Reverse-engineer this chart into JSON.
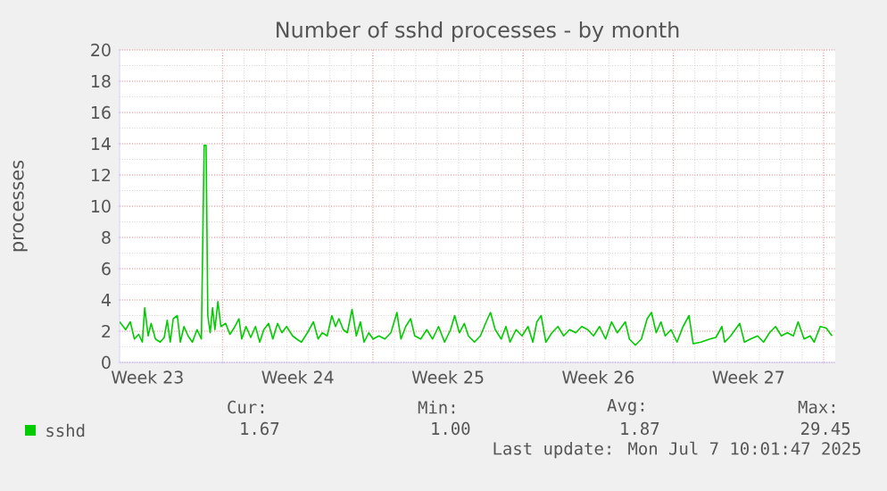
{
  "chart_data": {
    "type": "line",
    "title": "Number of sshd processes - by month",
    "ylabel": "processes",
    "x": [
      "2025-06-04T04:48",
      "2025-06-04T11:31",
      "2025-06-04T16:48",
      "2025-06-04T21:22",
      "2025-06-05T02:10",
      "2025-06-05T06:14",
      "2025-06-05T08:53",
      "2025-06-05T12:43",
      "2025-06-05T16:05",
      "2025-06-05T20:53",
      "2025-06-06T02:10",
      "2025-06-06T06:43",
      "2025-06-06T10:05",
      "2025-06-06T13:26",
      "2025-06-06T16:48",
      "2025-06-06T21:22",
      "2025-06-07T00:43",
      "2025-06-07T04:48",
      "2025-06-07T09:22",
      "2025-06-07T14:10",
      "2025-06-07T19:26",
      "2025-06-08T00:14",
      "2025-06-08T03:22",
      "2025-06-08T05:31",
      "2025-06-08T07:26",
      "2025-06-08T10:05",
      "2025-06-08T12:43",
      "2025-06-08T15:22",
      "2025-06-08T18:43",
      "2025-06-08T22:05",
      "2025-06-09T03:22",
      "2025-06-09T08:10",
      "2025-06-09T12:43",
      "2025-06-09T18:14",
      "2025-06-09T21:22",
      "2025-06-10T02:10",
      "2025-06-10T07:26",
      "2025-06-10T12:43",
      "2025-06-10T17:31",
      "2025-06-10T22:05",
      "2025-06-11T03:22",
      "2025-06-11T08:10",
      "2025-06-11T13:26",
      "2025-06-11T18:14",
      "2025-06-11T23:31",
      "2025-06-12T06:14",
      "2025-06-12T10:48",
      "2025-06-12T16:05",
      "2025-06-12T22:48",
      "2025-06-13T05:31",
      "2025-06-13T10:48",
      "2025-06-13T15:22",
      "2025-06-13T20:53",
      "2025-06-14T02:10",
      "2025-06-14T06:14",
      "2025-06-14T10:05",
      "2025-06-14T14:53",
      "2025-06-14T19:26",
      "2025-06-15T00:43",
      "2025-06-15T05:31",
      "2025-06-15T10:05",
      "2025-06-15T14:10",
      "2025-06-15T19:26",
      "2025-06-16T00:14",
      "2025-06-16T06:43",
      "2025-06-16T13:26",
      "2025-06-16T20:10",
      "2025-06-17T02:53",
      "2025-06-17T07:26",
      "2025-06-17T12:43",
      "2025-06-17T18:14",
      "2025-06-17T22:48",
      "2025-06-18T05:31",
      "2025-06-18T12:14",
      "2025-06-18T18:43",
      "2025-06-19T01:26",
      "2025-06-19T08:10",
      "2025-06-19T14:53",
      "2025-06-19T19:26",
      "2025-06-20T00:43",
      "2025-06-20T06:14",
      "2025-06-20T10:48",
      "2025-06-20T17:31",
      "2025-06-21T00:14",
      "2025-06-21T06:43",
      "2025-06-21T11:31",
      "2025-06-21T16:48",
      "2025-06-21T23:31",
      "2025-06-22T04:48",
      "2025-06-22T09:22",
      "2025-06-22T16:05",
      "2025-06-22T22:48",
      "2025-06-23T05:31",
      "2025-06-23T10:48",
      "2025-06-23T15:22",
      "2025-06-23T20:10",
      "2025-06-24T01:26",
      "2025-06-24T08:10",
      "2025-06-24T14:53",
      "2025-06-24T21:22",
      "2025-06-25T04:05",
      "2025-06-25T10:48",
      "2025-06-25T17:31",
      "2025-06-26T00:14",
      "2025-06-26T06:43",
      "2025-06-26T13:26",
      "2025-06-26T20:10",
      "2025-06-27T02:53",
      "2025-06-27T09:22",
      "2025-06-27T18:14",
      "2025-06-27T22:48",
      "2025-06-28T05:31",
      "2025-06-28T12:14",
      "2025-06-28T18:43",
      "2025-06-28T23:31",
      "2025-06-29T04:48",
      "2025-06-29T10:05",
      "2025-06-29T14:53",
      "2025-06-29T21:22",
      "2025-06-30T04:05",
      "2025-06-30T10:48",
      "2025-06-30T17:31",
      "2025-06-30T22:05",
      "2025-07-01T06:43",
      "2025-07-01T16:48",
      "2025-07-01T23:31",
      "2025-07-02T06:14",
      "2025-07-02T09:22",
      "2025-07-02T16:05",
      "2025-07-03T02:10",
      "2025-07-03T07:26",
      "2025-07-03T14:10",
      "2025-07-03T22:05",
      "2025-07-04T04:48",
      "2025-07-04T11:31",
      "2025-07-04T18:14",
      "2025-07-05T00:43",
      "2025-07-05T07:26",
      "2025-07-05T14:10",
      "2025-07-05T19:26",
      "2025-07-06T02:10",
      "2025-07-06T08:53",
      "2025-07-06T13:26",
      "2025-07-06T20:10",
      "2025-07-07T02:53",
      "2025-07-07T09:22"
    ],
    "series": [
      {
        "name": "sshd",
        "color": "#00cc00",
        "values": [
          2.6,
          2.1,
          2.6,
          1.5,
          1.8,
          1.3,
          3.5,
          1.7,
          2.5,
          1.5,
          1.3,
          1.6,
          2.7,
          1.3,
          2.8,
          3.0,
          1.3,
          2.3,
          1.7,
          1.3,
          2.1,
          1.5,
          13.9,
          13.9,
          3.0,
          1.9,
          3.5,
          2.1,
          3.9,
          2.3,
          2.5,
          1.8,
          2.2,
          2.8,
          1.5,
          2.3,
          1.6,
          2.3,
          1.3,
          2.1,
          2.5,
          1.5,
          2.5,
          1.9,
          2.3,
          1.7,
          1.5,
          1.3,
          1.9,
          2.6,
          1.5,
          1.9,
          1.7,
          3.0,
          2.3,
          2.8,
          2.1,
          1.9,
          3.4,
          1.7,
          2.6,
          1.3,
          1.9,
          1.5,
          1.7,
          1.5,
          1.9,
          3.2,
          1.5,
          2.3,
          2.8,
          1.7,
          1.5,
          2.1,
          1.5,
          2.3,
          1.3,
          2.1,
          3.0,
          1.9,
          2.5,
          1.7,
          1.3,
          1.7,
          2.6,
          3.2,
          2.1,
          1.5,
          2.3,
          1.3,
          2.1,
          1.7,
          2.3,
          1.3,
          2.6,
          3.0,
          1.3,
          1.9,
          2.3,
          1.7,
          2.1,
          1.9,
          2.3,
          2.1,
          1.7,
          2.3,
          1.5,
          2.6,
          1.9,
          2.6,
          1.5,
          1.1,
          1.5,
          2.8,
          3.2,
          1.9,
          2.6,
          1.7,
          2.1,
          1.3,
          2.3,
          3.0,
          1.2,
          1.3,
          1.5,
          1.6,
          2.3,
          1.3,
          1.7,
          2.5,
          1.3,
          1.5,
          1.7,
          1.3,
          1.9,
          2.3,
          1.7,
          1.9,
          1.7,
          2.6,
          1.5,
          1.7,
          1.3,
          2.3,
          2.2,
          1.7
        ]
      }
    ],
    "xlim": [
      "2025-06-04T04:48",
      "2025-07-07T13:00"
    ],
    "ylim": [
      0,
      20
    ],
    "yticks": [
      0,
      2,
      4,
      6,
      8,
      10,
      12,
      14,
      16,
      18,
      20
    ],
    "xticks": [
      {
        "value": "2025-06-05T12:00",
        "label": "Week 23"
      },
      {
        "value": "2025-06-12T12:00",
        "label": "Week 24"
      },
      {
        "value": "2025-06-19T12:00",
        "label": "Week 25"
      },
      {
        "value": "2025-06-26T12:00",
        "label": "Week 26"
      },
      {
        "value": "2025-07-03T12:00",
        "label": "Week 27"
      },
      {
        "value": "2025-06-09",
        "label": null
      },
      {
        "value": "2025-06-16",
        "label": null
      },
      {
        "value": "2025-06-23",
        "label": null
      },
      {
        "value": "2025-06-30",
        "label": null
      },
      {
        "value": "2025-07-07",
        "label": null
      }
    ],
    "grid": true,
    "legend": "bottom left",
    "marker": "none",
    "line_style": "solid",
    "annotations": [
      "Cur:",
      "Min:",
      "Avg:",
      "Max:",
      "1.67",
      "1.00",
      "1.87",
      "29.45",
      "Last update: Mon Jul  7 10:01:47 2025"
    ]
  }
}
